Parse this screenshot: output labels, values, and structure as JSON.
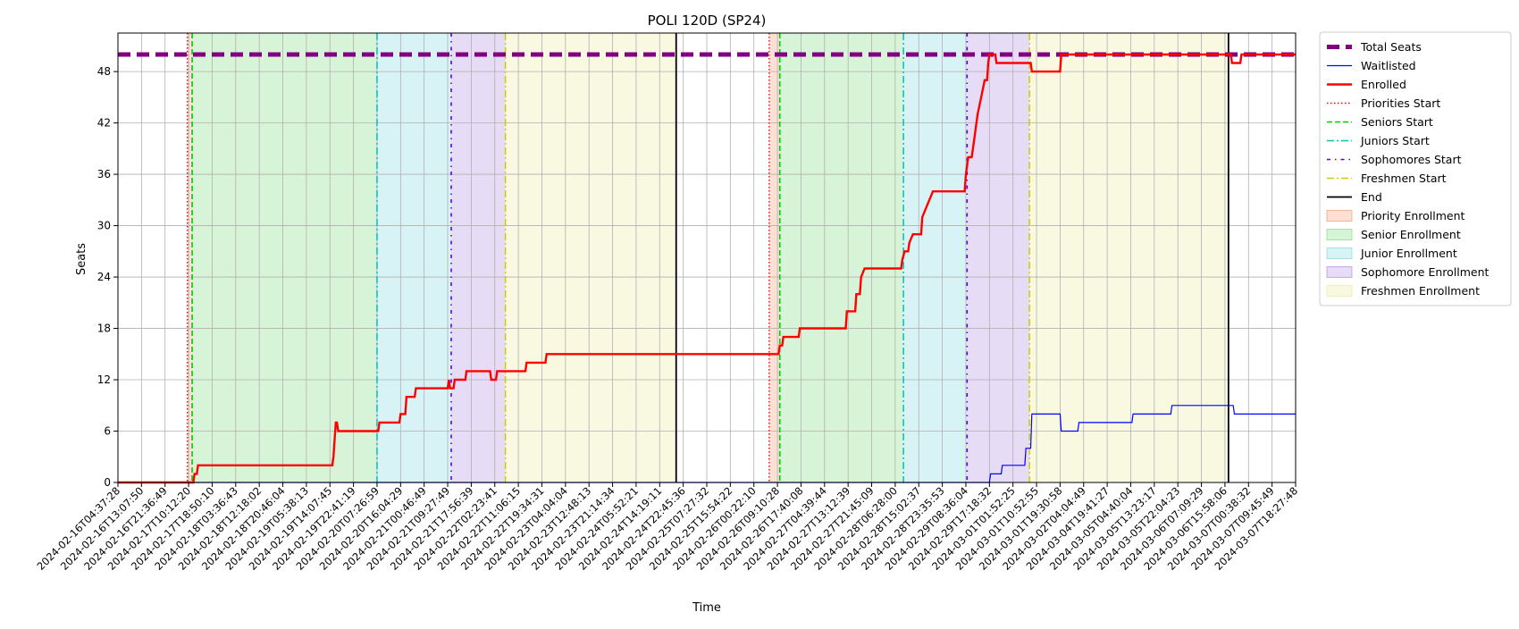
{
  "chart_data": {
    "type": "line",
    "title": "POLI 120D (SP24)",
    "xlabel": "Time",
    "ylabel": "Seats",
    "xlim": [
      0,
      1000
    ],
    "ylim": [
      0,
      52.5
    ],
    "y_ticks": [
      0,
      6,
      12,
      18,
      24,
      30,
      36,
      42,
      48
    ],
    "x_tick_labels": [
      "2024-02-16T04:37:28",
      "2024-02-16T13:07:50",
      "2024-02-16T21:36:49",
      "2024-02-17T10:12:20",
      "2024-02-17T18:50:10",
      "2024-02-18T03:36:43",
      "2024-02-18T12:18:02",
      "2024-02-18T20:46:04",
      "2024-02-19T05:38:13",
      "2024-02-19T14:07:45",
      "2024-02-19T22:41:19",
      "2024-02-20T07:26:59",
      "2024-02-20T16:04:29",
      "2024-02-21T00:46:49",
      "2024-02-21T09:27:49",
      "2024-02-21T17:56:39",
      "2024-02-22T02:23:41",
      "2024-02-22T11:06:15",
      "2024-02-22T19:34:31",
      "2024-02-23T04:04:04",
      "2024-02-23T12:48:13",
      "2024-02-23T21:14:34",
      "2024-02-24T05:52:21",
      "2024-02-24T14:19:11",
      "2024-02-24T22:45:36",
      "2024-02-25T07:27:32",
      "2024-02-25T15:54:22",
      "2024-02-26T00:22:10",
      "2024-02-26T09:10:28",
      "2024-02-26T17:40:08",
      "2024-02-27T04:39:44",
      "2024-02-27T13:12:39",
      "2024-02-27T21:45:09",
      "2024-02-28T06:28:00",
      "2024-02-28T15:02:37",
      "2024-02-28T23:35:53",
      "2024-02-29T08:36:04",
      "2024-02-29T17:18:32",
      "2024-03-01T01:52:25",
      "2024-03-01T10:52:55",
      "2024-03-01T19:30:58",
      "2024-03-02T04:04:49",
      "2024-03-04T19:41:27",
      "2024-03-05T04:40:04",
      "2024-03-05T13:23:17",
      "2024-03-05T22:04:23",
      "2024-03-06T07:09:29",
      "2024-03-06T15:58:06",
      "2024-03-07T00:38:32",
      "2024-03-07T09:45:49",
      "2024-03-07T18:27:48"
    ],
    "series": [
      {
        "name": "Total Seats",
        "color": "#800080",
        "style": "dashed-thick",
        "points": [
          [
            0,
            50
          ],
          [
            1000,
            50
          ]
        ]
      },
      {
        "name": "Waitlisted",
        "color": "#0000ff",
        "style": "solid-thin",
        "points": [
          [
            0,
            0
          ],
          [
            740,
            0
          ],
          [
            741,
            1
          ],
          [
            750,
            1
          ],
          [
            751,
            2
          ],
          [
            770,
            2
          ],
          [
            771,
            4
          ],
          [
            775,
            4
          ],
          [
            776,
            8
          ],
          [
            800,
            8
          ],
          [
            801,
            6
          ],
          [
            815,
            6
          ],
          [
            816,
            7
          ],
          [
            861,
            7
          ],
          [
            862,
            8
          ],
          [
            894,
            8
          ],
          [
            895,
            9
          ],
          [
            947,
            9
          ],
          [
            948,
            8
          ],
          [
            1000,
            8
          ]
        ]
      },
      {
        "name": "Enrolled",
        "color": "#ff0000",
        "style": "solid-thick",
        "points": [
          [
            0,
            0
          ],
          [
            64,
            0
          ],
          [
            65,
            1
          ],
          [
            67,
            1
          ],
          [
            68,
            2
          ],
          [
            182,
            2
          ],
          [
            183,
            3
          ],
          [
            184,
            5
          ],
          [
            185,
            7
          ],
          [
            186,
            7
          ],
          [
            187,
            6
          ],
          [
            221,
            6
          ],
          [
            222,
            7
          ],
          [
            239,
            7
          ],
          [
            240,
            8
          ],
          [
            244,
            8
          ],
          [
            245,
            10
          ],
          [
            252,
            10
          ],
          [
            253,
            11
          ],
          [
            280,
            11
          ],
          [
            281,
            12
          ],
          [
            282,
            11
          ],
          [
            285,
            11
          ],
          [
            286,
            12
          ],
          [
            295,
            12
          ],
          [
            296,
            13
          ],
          [
            316,
            13
          ],
          [
            317,
            12
          ],
          [
            321,
            12
          ],
          [
            322,
            13
          ],
          [
            346,
            13
          ],
          [
            347,
            14
          ],
          [
            363,
            14
          ],
          [
            364,
            15
          ],
          [
            561,
            15
          ],
          [
            562,
            16
          ],
          [
            564,
            16
          ],
          [
            565,
            17
          ],
          [
            578,
            17
          ],
          [
            579,
            18
          ],
          [
            618,
            18
          ],
          [
            619,
            20
          ],
          [
            626,
            20
          ],
          [
            627,
            22
          ],
          [
            630,
            22
          ],
          [
            631,
            24
          ],
          [
            634,
            25
          ],
          [
            665,
            25
          ],
          [
            666,
            26
          ],
          [
            668,
            27
          ],
          [
            671,
            27
          ],
          [
            672,
            28
          ],
          [
            675,
            29
          ],
          [
            682,
            29
          ],
          [
            683,
            31
          ],
          [
            686,
            32
          ],
          [
            689,
            33
          ],
          [
            692,
            34
          ],
          [
            719,
            34
          ],
          [
            720,
            36
          ],
          [
            722,
            38
          ],
          [
            725,
            38
          ],
          [
            727,
            40
          ],
          [
            730,
            43
          ],
          [
            733,
            45
          ],
          [
            736,
            47
          ],
          [
            738,
            47
          ],
          [
            739,
            49
          ],
          [
            740,
            50
          ],
          [
            745,
            50
          ],
          [
            746,
            49
          ],
          [
            775,
            49
          ],
          [
            776,
            48
          ],
          [
            800,
            48
          ],
          [
            801,
            50
          ],
          [
            945,
            50
          ],
          [
            946,
            49
          ],
          [
            953,
            49
          ],
          [
            954,
            50
          ],
          [
            1000,
            50
          ]
        ]
      }
    ],
    "vertical_lines": [
      {
        "name": "Priorities Start",
        "x": 59,
        "color": "#ff0000",
        "style": "dotted"
      },
      {
        "name": "Seniors Start",
        "x": 63,
        "color": "#00cc00",
        "style": "dashed"
      },
      {
        "name": "Juniors Start",
        "x": 220,
        "color": "#00bfbf",
        "style": "dashdot"
      },
      {
        "name": "Sophomores Start",
        "x": 283,
        "color": "#5500ff",
        "style": "dashdot-loose"
      },
      {
        "name": "Freshmen Start",
        "x": 329,
        "color": "#cccc00",
        "style": "dashdot"
      },
      {
        "name": "End",
        "x": 474,
        "color": "#000000",
        "style": "solid"
      },
      {
        "name": "Priorities Start",
        "x": 553,
        "color": "#ff0000",
        "style": "dotted"
      },
      {
        "name": "Seniors Start",
        "x": 562,
        "color": "#00cc00",
        "style": "dashed"
      },
      {
        "name": "Juniors Start",
        "x": 667,
        "color": "#00bfbf",
        "style": "dashdot"
      },
      {
        "name": "Sophomores Start",
        "x": 721,
        "color": "#5500ff",
        "style": "dashdot-loose"
      },
      {
        "name": "Freshmen Start",
        "x": 774,
        "color": "#cccc00",
        "style": "dashdot"
      },
      {
        "name": "End",
        "x": 943,
        "color": "#000000",
        "style": "solid"
      }
    ],
    "spans": [
      {
        "name": "Priority Enrollment",
        "from": 59,
        "to": 63,
        "color": "#f4a582"
      },
      {
        "name": "Senior Enrollment",
        "from": 63,
        "to": 220,
        "color": "#90e090"
      },
      {
        "name": "Junior Enrollment",
        "from": 220,
        "to": 283,
        "color": "#8fdde6"
      },
      {
        "name": "Sophomore Enrollment",
        "from": 283,
        "to": 329,
        "color": "#b79ce6"
      },
      {
        "name": "Freshmen Enrollment",
        "from": 329,
        "to": 474,
        "color": "#eeeeaa"
      },
      {
        "name": "Priority Enrollment",
        "from": 553,
        "to": 562,
        "color": "#f4a582"
      },
      {
        "name": "Senior Enrollment",
        "from": 562,
        "to": 667,
        "color": "#90e090"
      },
      {
        "name": "Junior Enrollment",
        "from": 667,
        "to": 721,
        "color": "#8fdde6"
      },
      {
        "name": "Sophomore Enrollment",
        "from": 721,
        "to": 774,
        "color": "#b79ce6"
      },
      {
        "name": "Freshmen Enrollment",
        "from": 774,
        "to": 943,
        "color": "#eeeeaa"
      }
    ],
    "legend": {
      "placement": "outside-right-top",
      "entries": [
        {
          "label": "Total Seats",
          "kind": "line",
          "color": "#800080",
          "style": "dashed-thick"
        },
        {
          "label": "Waitlisted",
          "kind": "line",
          "color": "#0000ff",
          "style": "solid-thin"
        },
        {
          "label": "Enrolled",
          "kind": "line",
          "color": "#ff0000",
          "style": "solid-thick"
        },
        {
          "label": "Priorities Start",
          "kind": "line",
          "color": "#ff0000",
          "style": "dotted"
        },
        {
          "label": "Seniors Start",
          "kind": "line",
          "color": "#00cc00",
          "style": "dashed"
        },
        {
          "label": "Juniors Start",
          "kind": "line",
          "color": "#00bfbf",
          "style": "dashdot"
        },
        {
          "label": "Sophomores Start",
          "kind": "line",
          "color": "#5500ff",
          "style": "dashdot-loose"
        },
        {
          "label": "Freshmen Start",
          "kind": "line",
          "color": "#cccc00",
          "style": "dashdot"
        },
        {
          "label": "End",
          "kind": "line",
          "color": "#000000",
          "style": "solid"
        },
        {
          "label": "Priority Enrollment",
          "kind": "patch",
          "color": "#f4a582"
        },
        {
          "label": "Senior Enrollment",
          "kind": "patch",
          "color": "#90e090"
        },
        {
          "label": "Junior Enrollment",
          "kind": "patch",
          "color": "#8fdde6"
        },
        {
          "label": "Sophomore Enrollment",
          "kind": "patch",
          "color": "#b79ce6"
        },
        {
          "label": "Freshmen Enrollment",
          "kind": "patch",
          "color": "#eeeeaa"
        }
      ]
    },
    "grid": true
  }
}
